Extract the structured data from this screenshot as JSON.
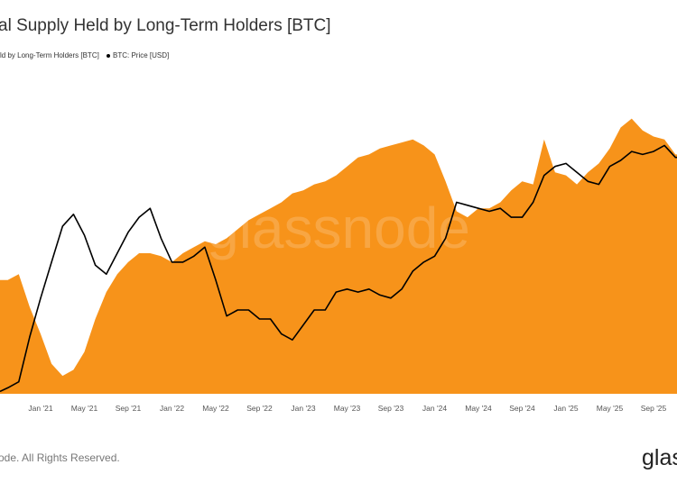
{
  "header": {
    "title": "al Supply Held by Long-Term Holders [BTC]",
    "legend": [
      {
        "label": "ld by Long-Term Holders [BTC]",
        "color": "#F7931A"
      },
      {
        "label": "BTC: Price [USD]",
        "color": "#000000"
      }
    ]
  },
  "watermark": "glassnode",
  "footer": {
    "copyright": "ode. All Rights Reserved.",
    "logo": "glas"
  },
  "chart_data": {
    "type": "area",
    "title": "al Supply Held by Long-Term Holders [BTC]",
    "xlabel": "",
    "ylabel": "",
    "note": "No y-axis shown; values are relative index (0-100) of plot height",
    "ylim": [
      0,
      100
    ],
    "grid": false,
    "legend_position": "top-left",
    "x_start": "Oct 2020",
    "x_step": "1 month",
    "tick_labels": [
      "Jan '21",
      "May '21",
      "Sep '21",
      "Jan '22",
      "May '22",
      "Sep '22",
      "Jan '23",
      "May '23",
      "Sep '23",
      "Jan '24",
      "May '24",
      "Sep '24",
      "Jan '25",
      "May '25",
      "Sep '25"
    ],
    "tick_indices": [
      3,
      7,
      11,
      15,
      19,
      23,
      27,
      31,
      35,
      39,
      43,
      47,
      51,
      55,
      59
    ],
    "series": [
      {
        "name": "ld by Long-Term Holders [BTC]",
        "type": "area",
        "color": "#F7931A",
        "values": [
          38,
          40,
          29,
          20,
          10,
          6,
          8,
          14,
          25,
          34,
          40,
          44,
          47,
          47,
          46,
          44,
          47,
          49,
          51,
          50,
          52,
          55,
          58,
          60,
          62,
          64,
          67,
          68,
          70,
          71,
          73,
          76,
          79,
          80,
          82,
          83,
          84,
          85,
          83,
          80,
          71,
          61,
          59,
          62,
          62,
          64,
          68,
          71,
          70,
          85,
          74,
          73,
          70,
          74,
          77,
          82,
          89,
          92,
          88,
          86,
          85,
          80
        ]
      },
      {
        "name": "BTC: Price [USD]",
        "type": "line",
        "color": "#000000",
        "values": [
          2,
          4,
          19,
          32,
          44,
          56,
          60,
          53,
          43,
          40,
          47,
          54,
          59,
          62,
          52,
          44,
          44,
          46,
          49,
          38,
          26,
          28,
          28,
          25,
          25,
          20,
          18,
          23,
          28,
          28,
          34,
          35,
          34,
          35,
          33,
          32,
          35,
          41,
          44,
          46,
          52,
          64,
          63,
          62,
          61,
          62,
          59,
          59,
          64,
          73,
          76,
          77,
          74,
          71,
          70,
          76,
          78,
          81,
          80,
          81,
          83,
          79
        ]
      }
    ]
  }
}
